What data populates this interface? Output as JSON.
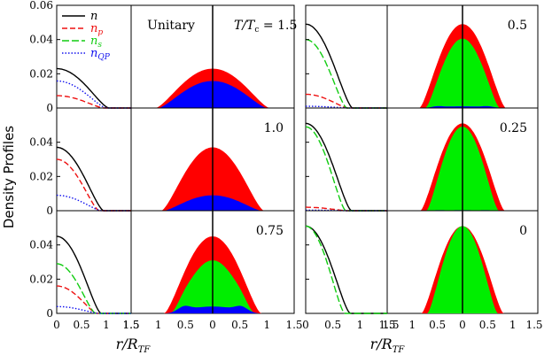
{
  "chart_data": {
    "type": "area",
    "ylabel": "Density Profiles",
    "xlabel_main": "r/R",
    "xlabel_sub": "TF",
    "title_annotation": "Unitary",
    "temperature_prefix": "T/T",
    "temperature_sub": "c",
    "temperature_eq": " = 1.5",
    "x_ticks": [
      "0",
      "0.5",
      "1",
      "1.5"
    ],
    "x_ticks_right": [
      "1.5",
      "1",
      "0.5",
      "0",
      "0.5",
      "1",
      "1.5"
    ],
    "y_ticks": [
      "0",
      "0.02",
      "0.04"
    ],
    "y_ticks_top": [
      "0",
      "0.02",
      "0.04",
      "0.06"
    ],
    "xlim": [
      0,
      1.5
    ],
    "ylim": [
      0,
      0.06
    ],
    "colors": {
      "n": "#000000",
      "np": "#ee1111",
      "ns": "#11cc11",
      "nqp": "#1111ee",
      "normal_fill": "#ff0000",
      "super_fill": "#00ee00",
      "qp_fill": "#0000ff"
    },
    "legend": [
      {
        "key": "n",
        "label": "n",
        "sub": ""
      },
      {
        "key": "np",
        "label": "n",
        "sub": "p"
      },
      {
        "key": "ns",
        "label": "n",
        "sub": "s"
      },
      {
        "key": "nqp",
        "label": "n",
        "sub": "QP"
      }
    ],
    "panels": [
      {
        "label": "1.5",
        "n0": 0.023,
        "R": 1.0,
        "p0": 0.0072,
        "s0": 0.0,
        "q0": 0.0158
      },
      {
        "label": "1.0",
        "n0": 0.037,
        "R": 0.9,
        "p0": 0.03,
        "s0": 0.0,
        "q0": 0.009
      },
      {
        "label": "0.75",
        "n0": 0.045,
        "R": 0.85,
        "p0": 0.016,
        "s0": 0.029,
        "q0": 0.004
      },
      {
        "label": "0.5",
        "n0": 0.049,
        "R": 0.82,
        "p0": 0.008,
        "s0": 0.04,
        "q0": 0.001
      },
      {
        "label": "0.25",
        "n0": 0.051,
        "R": 0.8,
        "p0": 0.002,
        "s0": 0.049,
        "q0": 0.0003
      },
      {
        "label": "0",
        "n0": 0.051,
        "R": 0.78,
        "p0": 0.0,
        "s0": 0.051,
        "q0": 0.0
      }
    ]
  }
}
